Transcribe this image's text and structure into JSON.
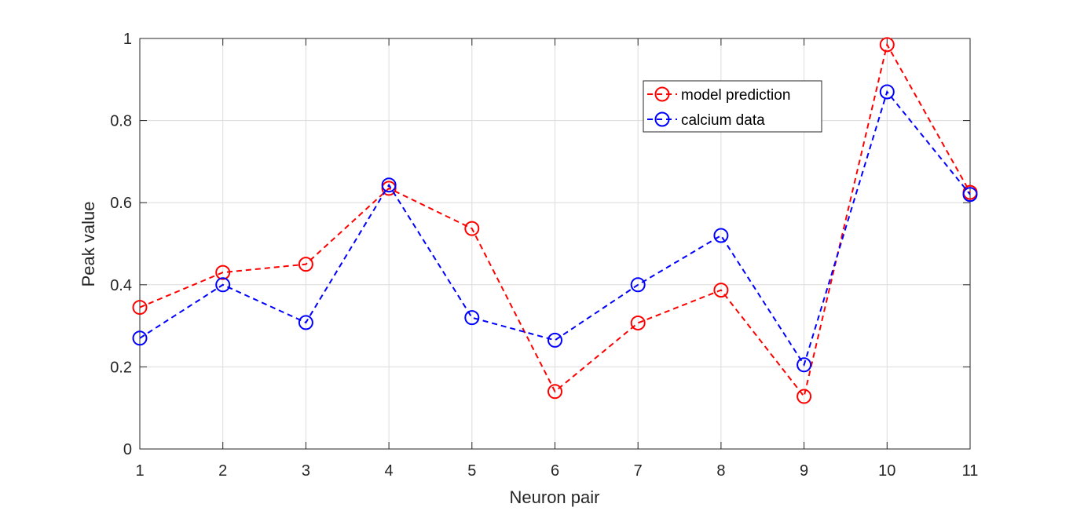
{
  "chart_data": {
    "type": "line",
    "xlabel": "Neuron pair",
    "ylabel": "Peak value",
    "x": [
      1,
      2,
      3,
      4,
      5,
      6,
      7,
      8,
      9,
      10,
      11
    ],
    "xlim": [
      1,
      11
    ],
    "ylim": [
      0,
      1
    ],
    "xticks": [
      "1",
      "2",
      "3",
      "4",
      "5",
      "6",
      "7",
      "8",
      "9",
      "10",
      "11"
    ],
    "yticks": [
      "0",
      "0.2",
      "0.4",
      "0.6",
      "0.8",
      "1"
    ],
    "grid": true,
    "legend_position": "top-right",
    "series": [
      {
        "name": "model prediction",
        "color": "#ff0000",
        "line_style": "dashed",
        "marker": "circle",
        "values": [
          0.345,
          0.43,
          0.45,
          0.635,
          0.537,
          0.14,
          0.307,
          0.387,
          0.128,
          0.985,
          0.625
        ]
      },
      {
        "name": "calcium data",
        "color": "#0000ff",
        "line_style": "dashed",
        "marker": "circle",
        "values": [
          0.27,
          0.4,
          0.308,
          0.643,
          0.32,
          0.265,
          0.4,
          0.52,
          0.205,
          0.87,
          0.62
        ]
      }
    ]
  }
}
